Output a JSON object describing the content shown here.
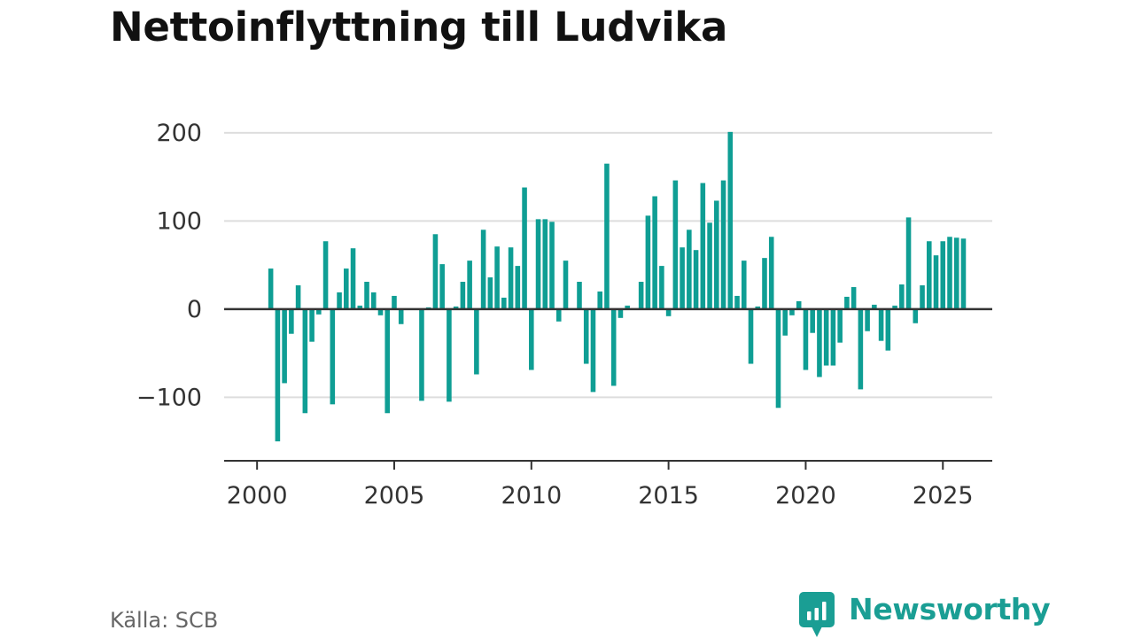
{
  "title": "Nettoinflyttning till Ludvika",
  "source": "Källa: SCB",
  "brand": {
    "name": "Newsworthy",
    "icon": "newsworthy-logo-icon",
    "color": "#1a9e94"
  },
  "colors": {
    "bar": "#0f9e94",
    "grid": "#dddddd",
    "zero_line": "#333333"
  },
  "chart_data": {
    "type": "bar",
    "x_start": 2000.0,
    "x_step": 0.25,
    "xlim": [
      1998.8,
      2026.8
    ],
    "ylim": [
      -172,
      230
    ],
    "x_ticks": [
      2000,
      2005,
      2010,
      2015,
      2020,
      2025
    ],
    "y_ticks": [
      -100,
      0,
      100,
      200
    ],
    "y_tick_labels": [
      "−100",
      "0",
      "100",
      "200"
    ],
    "grid": true,
    "legend": false,
    "values": [
      0,
      0,
      46,
      -150,
      -84,
      -28,
      27,
      -118,
      -37,
      -6,
      77,
      -108,
      19,
      46,
      69,
      4,
      31,
      19,
      -7,
      -118,
      15,
      -17,
      0,
      0,
      -104,
      2,
      85,
      51,
      -105,
      3,
      31,
      55,
      -74,
      90,
      36,
      71,
      13,
      70,
      49,
      138,
      -69,
      102,
      102,
      99,
      -14,
      55,
      0,
      31,
      -62,
      -94,
      20,
      165,
      -87,
      -10,
      4,
      0,
      31,
      106,
      128,
      49,
      -8,
      146,
      70,
      90,
      67,
      143,
      98,
      123,
      146,
      201,
      15,
      55,
      -62,
      3,
      58,
      82,
      -112,
      -30,
      -7,
      9,
      -69,
      -27,
      -77,
      -64,
      -64,
      -38,
      14,
      25,
      -91,
      -25,
      5,
      -36,
      -47,
      4,
      28,
      104,
      -16,
      27,
      77,
      61,
      77,
      82,
      81,
      80
    ]
  }
}
